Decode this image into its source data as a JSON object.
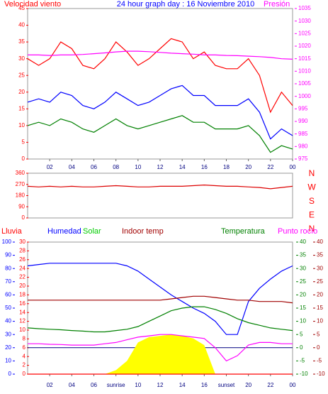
{
  "chart_data": [
    {
      "type": "line",
      "title": "24 hour graph day : 16 Noviembre 2010",
      "y_label": "Velocidad viento",
      "y2_label": "Presión",
      "x": [
        0,
        1,
        2,
        3,
        4,
        5,
        6,
        7,
        8,
        9,
        10,
        11,
        12,
        13,
        14,
        15,
        16,
        17,
        18,
        19,
        20,
        21,
        22,
        23,
        24
      ],
      "xlim": [
        0,
        24
      ],
      "xticks": [
        {
          "value": 2,
          "label": "02"
        },
        {
          "value": 4,
          "label": "04"
        },
        {
          "value": 6,
          "label": "06"
        },
        {
          "value": 8,
          "label": "08"
        },
        {
          "value": 10,
          "label": "10"
        },
        12,
        14,
        16,
        18,
        20,
        22,
        {
          "value": 24,
          "label": "00"
        }
      ],
      "ylim": [
        0,
        45
      ],
      "yticks": [
        0,
        5,
        10,
        15,
        20,
        25,
        30,
        35,
        40,
        45
      ],
      "y2lim": [
        975,
        1035
      ],
      "y2ticks": [
        975,
        980,
        985,
        990,
        995,
        1000,
        1005,
        1010,
        1015,
        1020,
        1025,
        1030,
        1035
      ],
      "axis_colors": {
        "y": "#ff0000",
        "y2": "#ff00ff"
      },
      "series": [
        {
          "color": "#ff0000",
          "values": [
            30,
            28,
            30,
            35,
            33,
            28,
            27,
            30,
            35,
            32,
            28,
            30,
            33,
            36,
            35,
            30,
            32,
            28,
            27,
            27,
            30,
            25,
            14,
            20,
            16
          ]
        },
        {
          "color": "#0000ff",
          "values": [
            17,
            18,
            17,
            20,
            19,
            16,
            15,
            17,
            20,
            18,
            16,
            17,
            19,
            21,
            22,
            19,
            19,
            16,
            16,
            16,
            18,
            14,
            6,
            9,
            7
          ]
        },
        {
          "color": "#008000",
          "values": [
            10,
            11,
            10,
            12,
            11,
            9,
            8,
            10,
            12,
            10,
            9,
            10,
            11,
            12,
            13,
            11,
            11,
            9,
            9,
            9,
            10,
            7,
            2,
            4,
            3
          ]
        },
        {
          "name": "Presión",
          "color": "#ff00ff",
          "axis": "y2",
          "values": [
            1016.5,
            1016.5,
            1016.3,
            1016.5,
            1016.5,
            1016.7,
            1017,
            1017.3,
            1017.7,
            1018,
            1018,
            1017.8,
            1017.5,
            1017.2,
            1017,
            1016.8,
            1016.5,
            1016.5,
            1016.3,
            1016.2,
            1016,
            1015.8,
            1015.5,
            1015,
            1014.8
          ]
        }
      ]
    },
    {
      "type": "line",
      "compass": [
        "N",
        "W",
        "S",
        "E",
        "N"
      ],
      "x": [
        0,
        1,
        2,
        3,
        4,
        5,
        6,
        7,
        8,
        9,
        10,
        11,
        12,
        13,
        14,
        15,
        16,
        17,
        18,
        19,
        20,
        21,
        22,
        23,
        24
      ],
      "xlim": [
        0,
        24
      ],
      "ylim": [
        0,
        360
      ],
      "yticks": [
        0,
        90,
        180,
        270,
        360
      ],
      "axis_colors": {
        "y": "#ff0000"
      },
      "series": [
        {
          "color": "#dd0000",
          "values": [
            255,
            250,
            255,
            250,
            255,
            250,
            250,
            255,
            260,
            255,
            250,
            250,
            255,
            255,
            255,
            260,
            265,
            260,
            255,
            255,
            250,
            245,
            235,
            245,
            255
          ]
        }
      ]
    },
    {
      "type": "line",
      "labels": [
        {
          "text": "Lluvia",
          "color": "#ff0000"
        },
        {
          "text": "Humedad",
          "color": "#0000ff"
        },
        {
          "text": "Solar",
          "color": "#00cc00"
        },
        {
          "text": "Indoor temp",
          "color": "#a00000"
        },
        {
          "text": "Temperatura",
          "color": "#008000"
        },
        {
          "text": "Punto rocío",
          "color": "#ff00ff"
        }
      ],
      "x": [
        0,
        1,
        2,
        3,
        4,
        5,
        6,
        7,
        8,
        9,
        10,
        11,
        12,
        13,
        14,
        15,
        16,
        17,
        18,
        19,
        20,
        21,
        22,
        23,
        24
      ],
      "xlim": [
        0,
        24
      ],
      "xticks": [
        {
          "value": 2,
          "label": "02"
        },
        {
          "value": 4,
          "label": "04"
        },
        {
          "value": 6,
          "label": "06"
        },
        {
          "value": 8,
          "label": "sunrise"
        },
        10,
        12,
        14,
        16,
        {
          "value": 18,
          "label": "sunset"
        },
        20,
        22,
        {
          "value": 24,
          "label": "00"
        }
      ],
      "ylim": [
        0,
        100
      ],
      "yticks": [
        0,
        10,
        20,
        30,
        40,
        50,
        60,
        70,
        80,
        90,
        100
      ],
      "y2lim": [
        0,
        30
      ],
      "y2ticks": [
        0,
        2,
        4,
        6,
        8,
        10,
        12,
        14,
        16,
        18,
        20,
        22,
        24,
        26,
        28,
        30
      ],
      "y3lim": [
        -10,
        40
      ],
      "y3ticks": [
        -10,
        -5,
        0,
        5,
        10,
        15,
        20,
        25,
        30,
        35,
        40
      ],
      "y4lim": [
        -10,
        40
      ],
      "y4ticks": [
        -10,
        -5,
        0,
        5,
        10,
        15,
        20,
        25,
        30,
        35,
        40
      ],
      "axis_colors": {
        "y": "#0000ff",
        "y2": "#ff0000",
        "y3": "#008000",
        "y4": "#a00000"
      },
      "series": [
        {
          "color": "#ffff00",
          "style": "area",
          "axis": "y",
          "values": [
            0,
            0,
            0,
            0,
            0,
            0,
            0,
            0,
            3,
            10,
            24,
            28,
            29,
            30,
            29,
            27,
            22,
            0,
            0,
            0,
            0,
            0,
            0,
            0,
            0
          ]
        },
        {
          "color": "#ff0000",
          "axis": "y2",
          "values": [
            0,
            0,
            0,
            0,
            0,
            0,
            0,
            0,
            0,
            0,
            0,
            0,
            0,
            0,
            0,
            0,
            0,
            0,
            0,
            0,
            0,
            0,
            0,
            0,
            0
          ]
        },
        {
          "color": "#0000ff",
          "axis": "y",
          "values": [
            82,
            83,
            84,
            84,
            84,
            84,
            84,
            84,
            84,
            82,
            78,
            72,
            66,
            60,
            55,
            50,
            46,
            40,
            30,
            30,
            55,
            65,
            72,
            78,
            82
          ]
        },
        {
          "color": "#a00000",
          "axis": "y4",
          "values": [
            18,
            18,
            18,
            18,
            18,
            18,
            18,
            18,
            18,
            18,
            18,
            18,
            18,
            18.5,
            19,
            19.5,
            19.5,
            19,
            18.5,
            18,
            18,
            17.5,
            17.5,
            17.5,
            17
          ]
        },
        {
          "color": "#008000",
          "axis": "y3",
          "values": [
            7.5,
            7.2,
            7,
            6.8,
            6.5,
            6.3,
            6,
            6,
            6.5,
            7,
            8,
            10,
            12,
            14,
            15,
            15.5,
            15.5,
            14.5,
            13,
            11,
            9.5,
            8.5,
            7.5,
            7,
            6.5
          ]
        },
        {
          "color": "#ff00ff",
          "axis": "y3",
          "values": [
            1.5,
            1.5,
            1.3,
            1.2,
            1,
            1,
            1,
            1.5,
            2,
            3,
            4,
            4.5,
            5,
            5,
            4.5,
            4,
            3.5,
            0,
            -5,
            -3,
            1,
            2,
            2,
            1.5,
            1.5
          ]
        }
      ]
    }
  ]
}
